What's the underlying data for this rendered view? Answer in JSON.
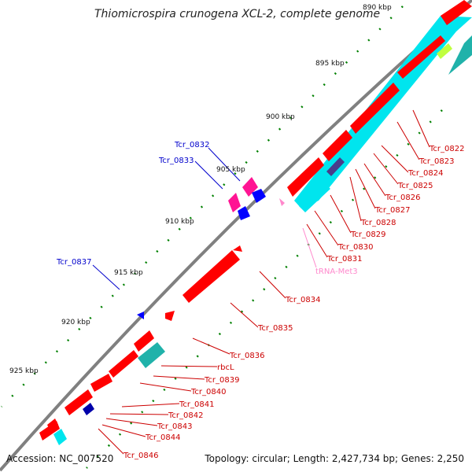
{
  "title": "Thiomicrospira crunogena XCL-2, complete genome",
  "accession": "Accession: NC_007520",
  "summary": "Topology: circular; Length: 2,427,734 bp; Genes: 2,250",
  "colors": {
    "backbone": "#808080",
    "forward_cds": "#ff0000",
    "reverse_cds": "#0000ff",
    "trna": "#ff88cc",
    "cyan_track": "#00e5ee",
    "teal_track": "#20b2aa",
    "magenta_track": "#ff1493",
    "tick_green": "#008000",
    "label_red": "#cc0000",
    "label_blue": "#0000cc"
  },
  "ticks": [
    "890 kbp",
    "895 kbp",
    "900 kbp",
    "905 kbp",
    "910 kbp",
    "915 kbp",
    "920 kbp",
    "925 kbp"
  ],
  "labels_right": [
    "Tcr_0822",
    "Tcr_0823",
    "Tcr_0824",
    "Tcr_0825",
    "Tcr_0826",
    "Tcr_0827",
    "Tcr_0828",
    "Tcr_0829",
    "Tcr_0830",
    "Tcr_0831",
    "tRNA-Met3",
    "Tcr_0834",
    "Tcr_0835",
    "Tcr_0836",
    "rbcL",
    "Tcr_0839",
    "Tcr_0840",
    "Tcr_0841",
    "Tcr_0842",
    "Tcr_0843",
    "Tcr_0844",
    "Tcr_0846"
  ],
  "labels_left": [
    "Tcr_0832",
    "Tcr_0833",
    "Tcr_0837"
  ]
}
